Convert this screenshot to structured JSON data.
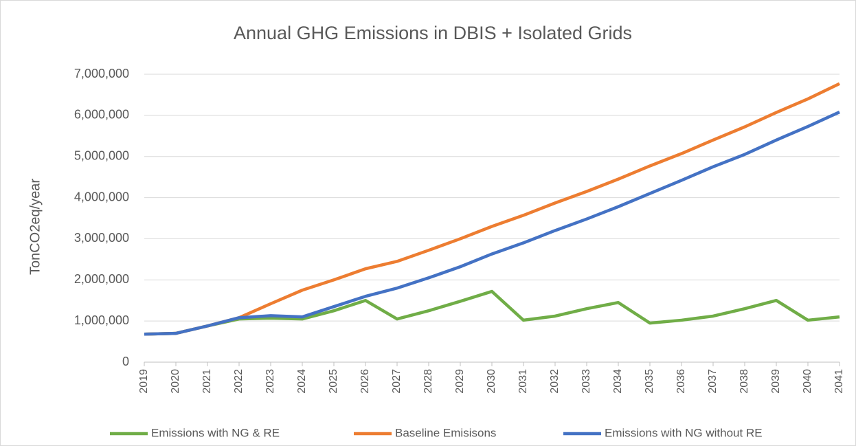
{
  "chart_data": {
    "type": "line",
    "title": "Annual GHG Emissions in DBIS + Isolated Grids",
    "y_label": "TonCO2eq/year",
    "categories": [
      "2019",
      "2020",
      "2021",
      "2022",
      "2023",
      "2024",
      "2025",
      "2026",
      "2027",
      "2028",
      "2029",
      "2030",
      "2031",
      "2032",
      "2033",
      "2034",
      "2035",
      "2036",
      "2037",
      "2038",
      "2039",
      "2040",
      "2041"
    ],
    "series": [
      {
        "name": "Emissions with NG & RE",
        "color": "#70ad47",
        "values": [
          680000,
          700000,
          880000,
          1050000,
          1070000,
          1050000,
          1250000,
          1500000,
          1050000,
          1250000,
          1480000,
          1720000,
          1020000,
          1120000,
          1300000,
          1450000,
          950000,
          1020000,
          1120000,
          1300000,
          1500000,
          1020000,
          1100000
        ]
      },
      {
        "name": "Baseline Emisisons",
        "color": "#ed7d31",
        "values": [
          680000,
          700000,
          880000,
          1080000,
          1420000,
          1750000,
          2000000,
          2270000,
          2450000,
          2720000,
          3000000,
          3300000,
          3570000,
          3870000,
          4150000,
          4450000,
          4770000,
          5070000,
          5400000,
          5720000,
          6070000,
          6400000,
          6770000
        ]
      },
      {
        "name": "Emissions with NG without RE",
        "color": "#4472c4",
        "values": [
          680000,
          700000,
          880000,
          1080000,
          1130000,
          1100000,
          1350000,
          1600000,
          1800000,
          2050000,
          2320000,
          2630000,
          2900000,
          3200000,
          3480000,
          3780000,
          4100000,
          4420000,
          4750000,
          5050000,
          5400000,
          5730000,
          6080000
        ]
      }
    ],
    "ylim": [
      0,
      7000000
    ],
    "yticks": [
      0,
      {
        "value": 1000000,
        "label": "1,000,000"
      },
      {
        "value": 2000000,
        "label": "2,000,000"
      },
      {
        "value": 3000000,
        "label": "3,000,000"
      },
      {
        "value": 4000000,
        "label": "4,000,000"
      },
      {
        "value": 5000000,
        "label": "5,000,000"
      },
      {
        "value": 6000000,
        "label": "6,000,000"
      },
      {
        "value": 7000000,
        "label": "7,000,000"
      }
    ],
    "grid": true,
    "legend": "bottom"
  }
}
